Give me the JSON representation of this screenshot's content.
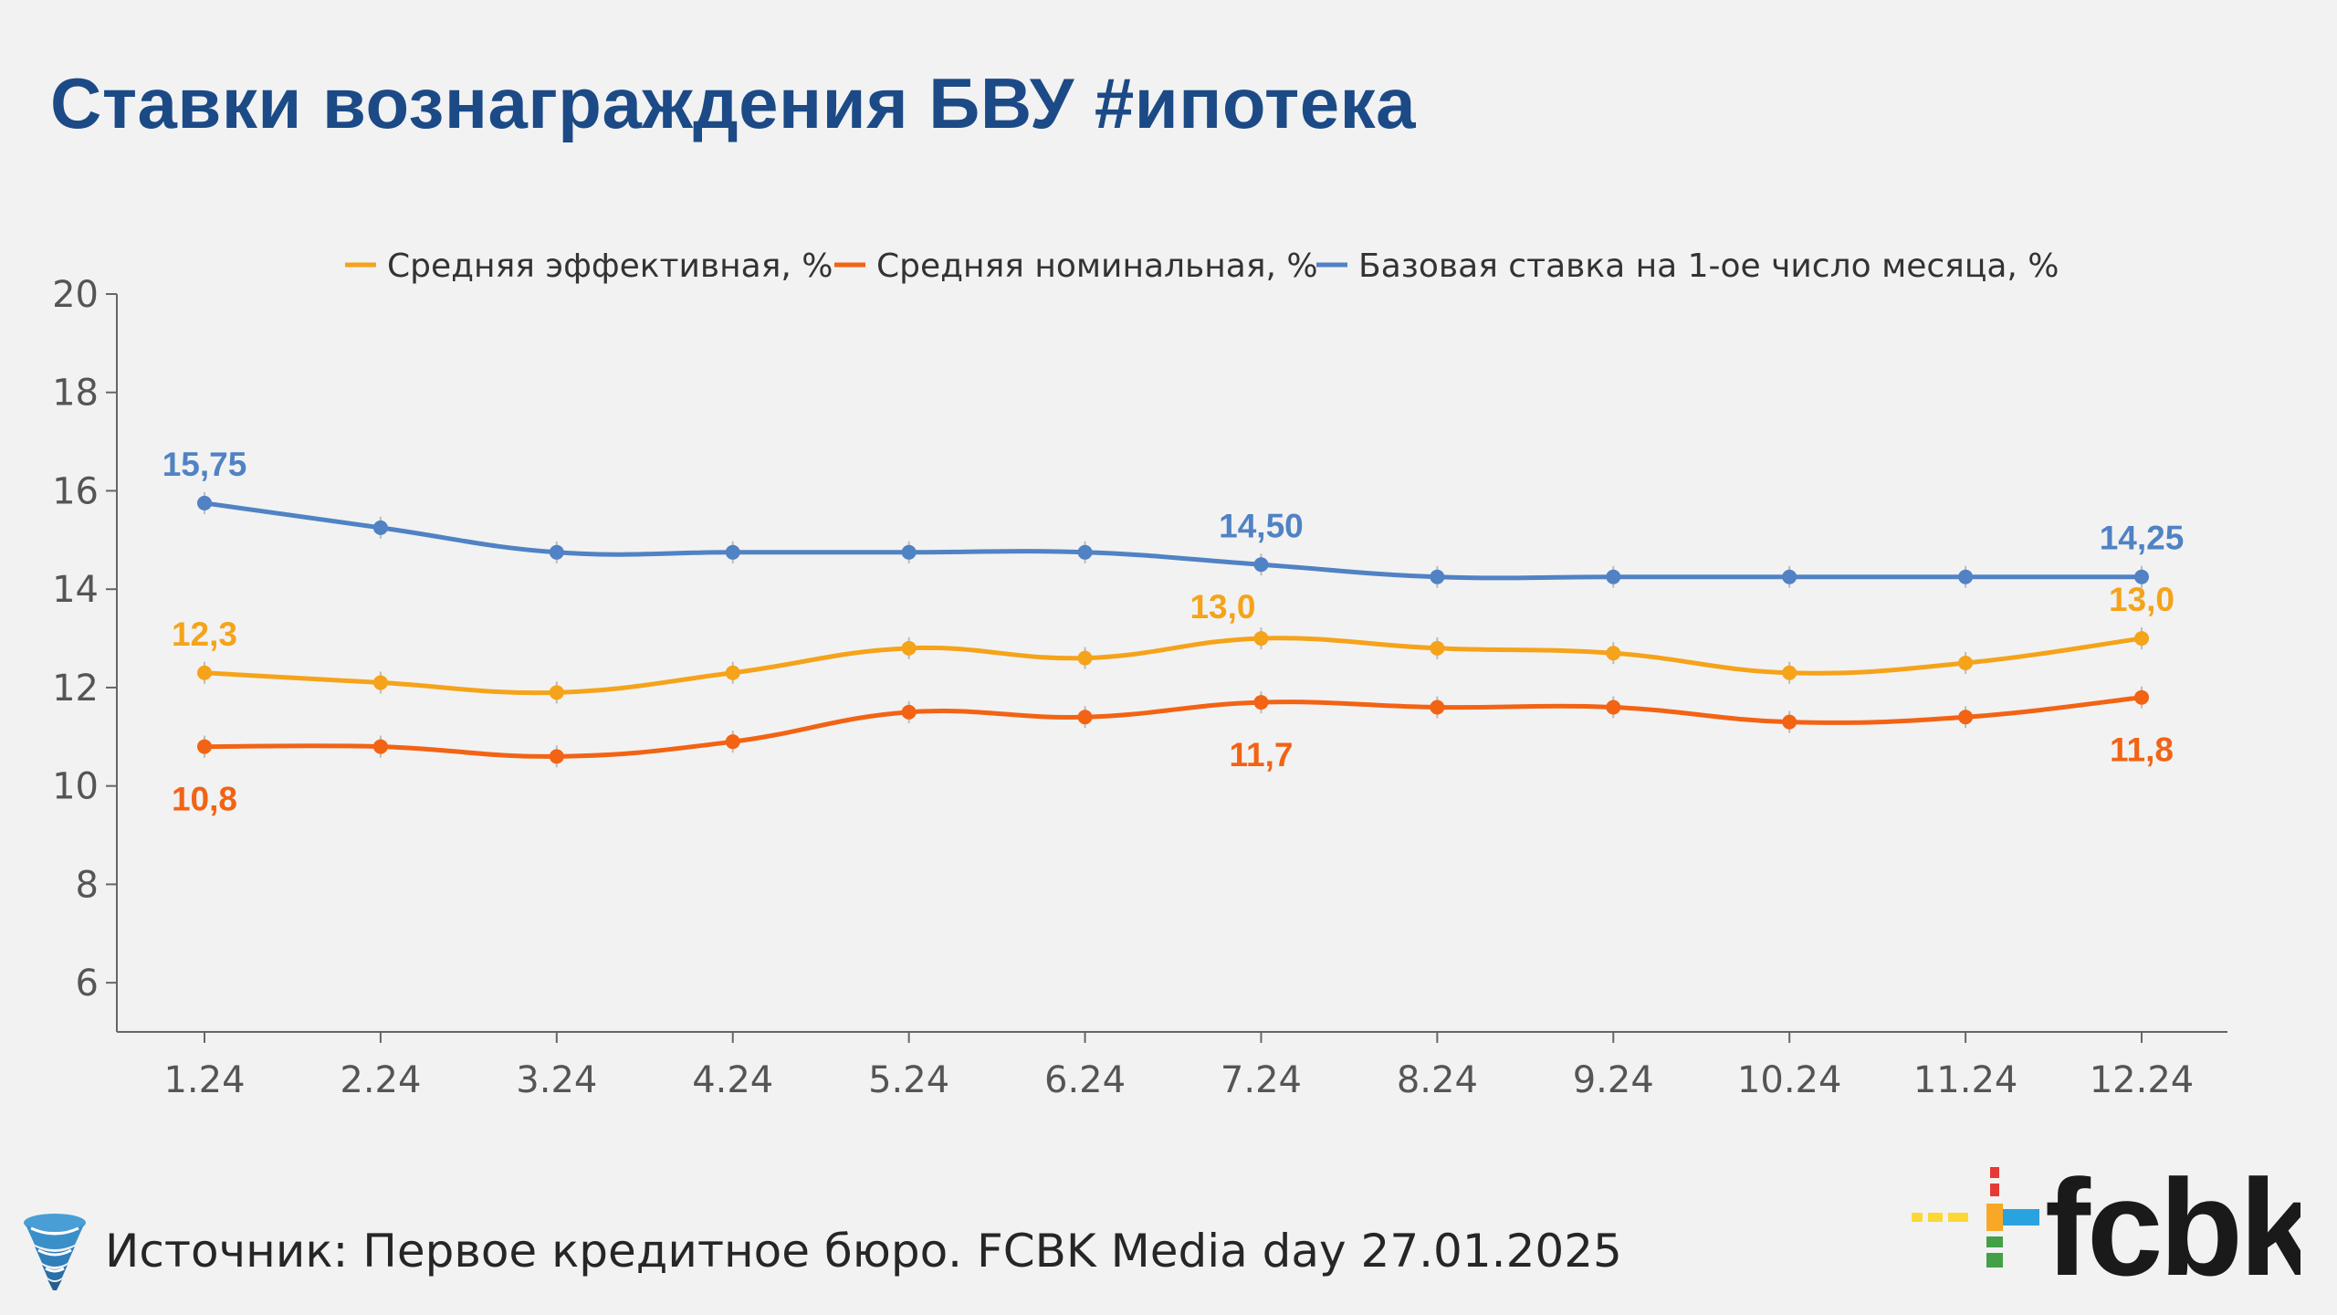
{
  "title": "Ставки вознаграждения БВУ #ипотека",
  "footer": {
    "source": "Источник: Первое кредитное бюро. FCBK Media day 27.01.2025",
    "logo_text": "fcbk"
  },
  "chart_data": {
    "type": "line",
    "title": "Ставки вознаграждения БВУ #ипотека",
    "xlabel": "",
    "ylabel": "",
    "ylim": [
      5,
      20
    ],
    "yticks": [
      6,
      8,
      10,
      12,
      14,
      16,
      18,
      20
    ],
    "yticks_text": [
      "6",
      "8",
      "10",
      "12",
      "14",
      "16",
      "18",
      "20"
    ],
    "categories": [
      "1.24",
      "2.24",
      "3.24",
      "4.24",
      "5.24",
      "6.24",
      "7.24",
      "8.24",
      "9.24",
      "10.24",
      "11.24",
      "12.24"
    ],
    "legend_position": "top",
    "series": [
      {
        "name": "Средняя эффективная, %",
        "color": "#f5a31a",
        "values": [
          12.3,
          12.1,
          11.9,
          12.3,
          12.8,
          12.6,
          13.0,
          12.8,
          12.7,
          12.3,
          12.5,
          13.0
        ],
        "labels": [
          {
            "index": 0,
            "text": "12,3",
            "pos": "above"
          },
          {
            "index": 6,
            "text": "13,0",
            "pos": "above-left"
          },
          {
            "index": 11,
            "text": "13,0",
            "pos": "above"
          }
        ]
      },
      {
        "name": "Средняя номинальная, %",
        "color": "#f26314",
        "values": [
          10.8,
          10.8,
          10.6,
          10.9,
          11.5,
          11.4,
          11.7,
          11.6,
          11.6,
          11.3,
          11.4,
          11.8
        ],
        "labels": [
          {
            "index": 0,
            "text": "10,8",
            "pos": "below"
          },
          {
            "index": 6,
            "text": "11,7",
            "pos": "below"
          },
          {
            "index": 11,
            "text": "11,8",
            "pos": "below"
          }
        ]
      },
      {
        "name": "Базовая ставка на 1-ое число месяца, %",
        "color": "#5082c4",
        "values": [
          15.75,
          15.25,
          14.75,
          14.75,
          14.75,
          14.75,
          14.5,
          14.25,
          14.25,
          14.25,
          14.25,
          14.25
        ],
        "labels": [
          {
            "index": 0,
            "text": "15,75",
            "pos": "above"
          },
          {
            "index": 6,
            "text": "14,50",
            "pos": "above"
          },
          {
            "index": 11,
            "text": "14,25",
            "pos": "above"
          }
        ]
      }
    ]
  }
}
